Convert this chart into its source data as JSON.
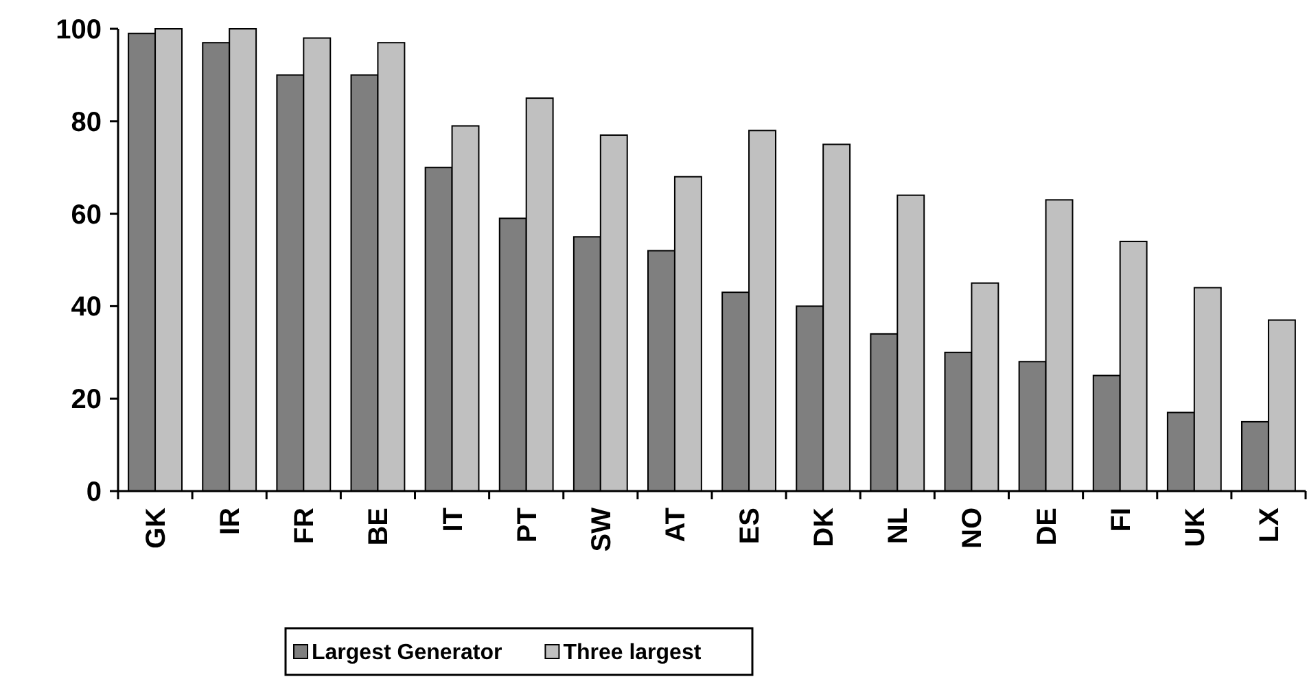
{
  "chart_data": {
    "type": "bar",
    "categories": [
      "GK",
      "IR",
      "FR",
      "BE",
      "IT",
      "PT",
      "SW",
      "AT",
      "ES",
      "DK",
      "NL",
      "NO",
      "DE",
      "FI",
      "UK",
      "LX"
    ],
    "series": [
      {
        "name": "Largest Generator",
        "color": "#7f7f7f",
        "values": [
          99,
          97,
          90,
          90,
          70,
          59,
          55,
          52,
          43,
          40,
          34,
          30,
          28,
          25,
          17,
          15
        ]
      },
      {
        "name": "Three largest",
        "color": "#c0c0c0",
        "values": [
          100,
          100,
          98,
          97,
          79,
          85,
          77,
          68,
          78,
          75,
          64,
          45,
          63,
          54,
          44,
          37
        ]
      }
    ],
    "ylim": [
      0,
      100
    ],
    "yticks": [
      0,
      20,
      40,
      60,
      80,
      100
    ],
    "grid": false,
    "legend": "bottom"
  }
}
